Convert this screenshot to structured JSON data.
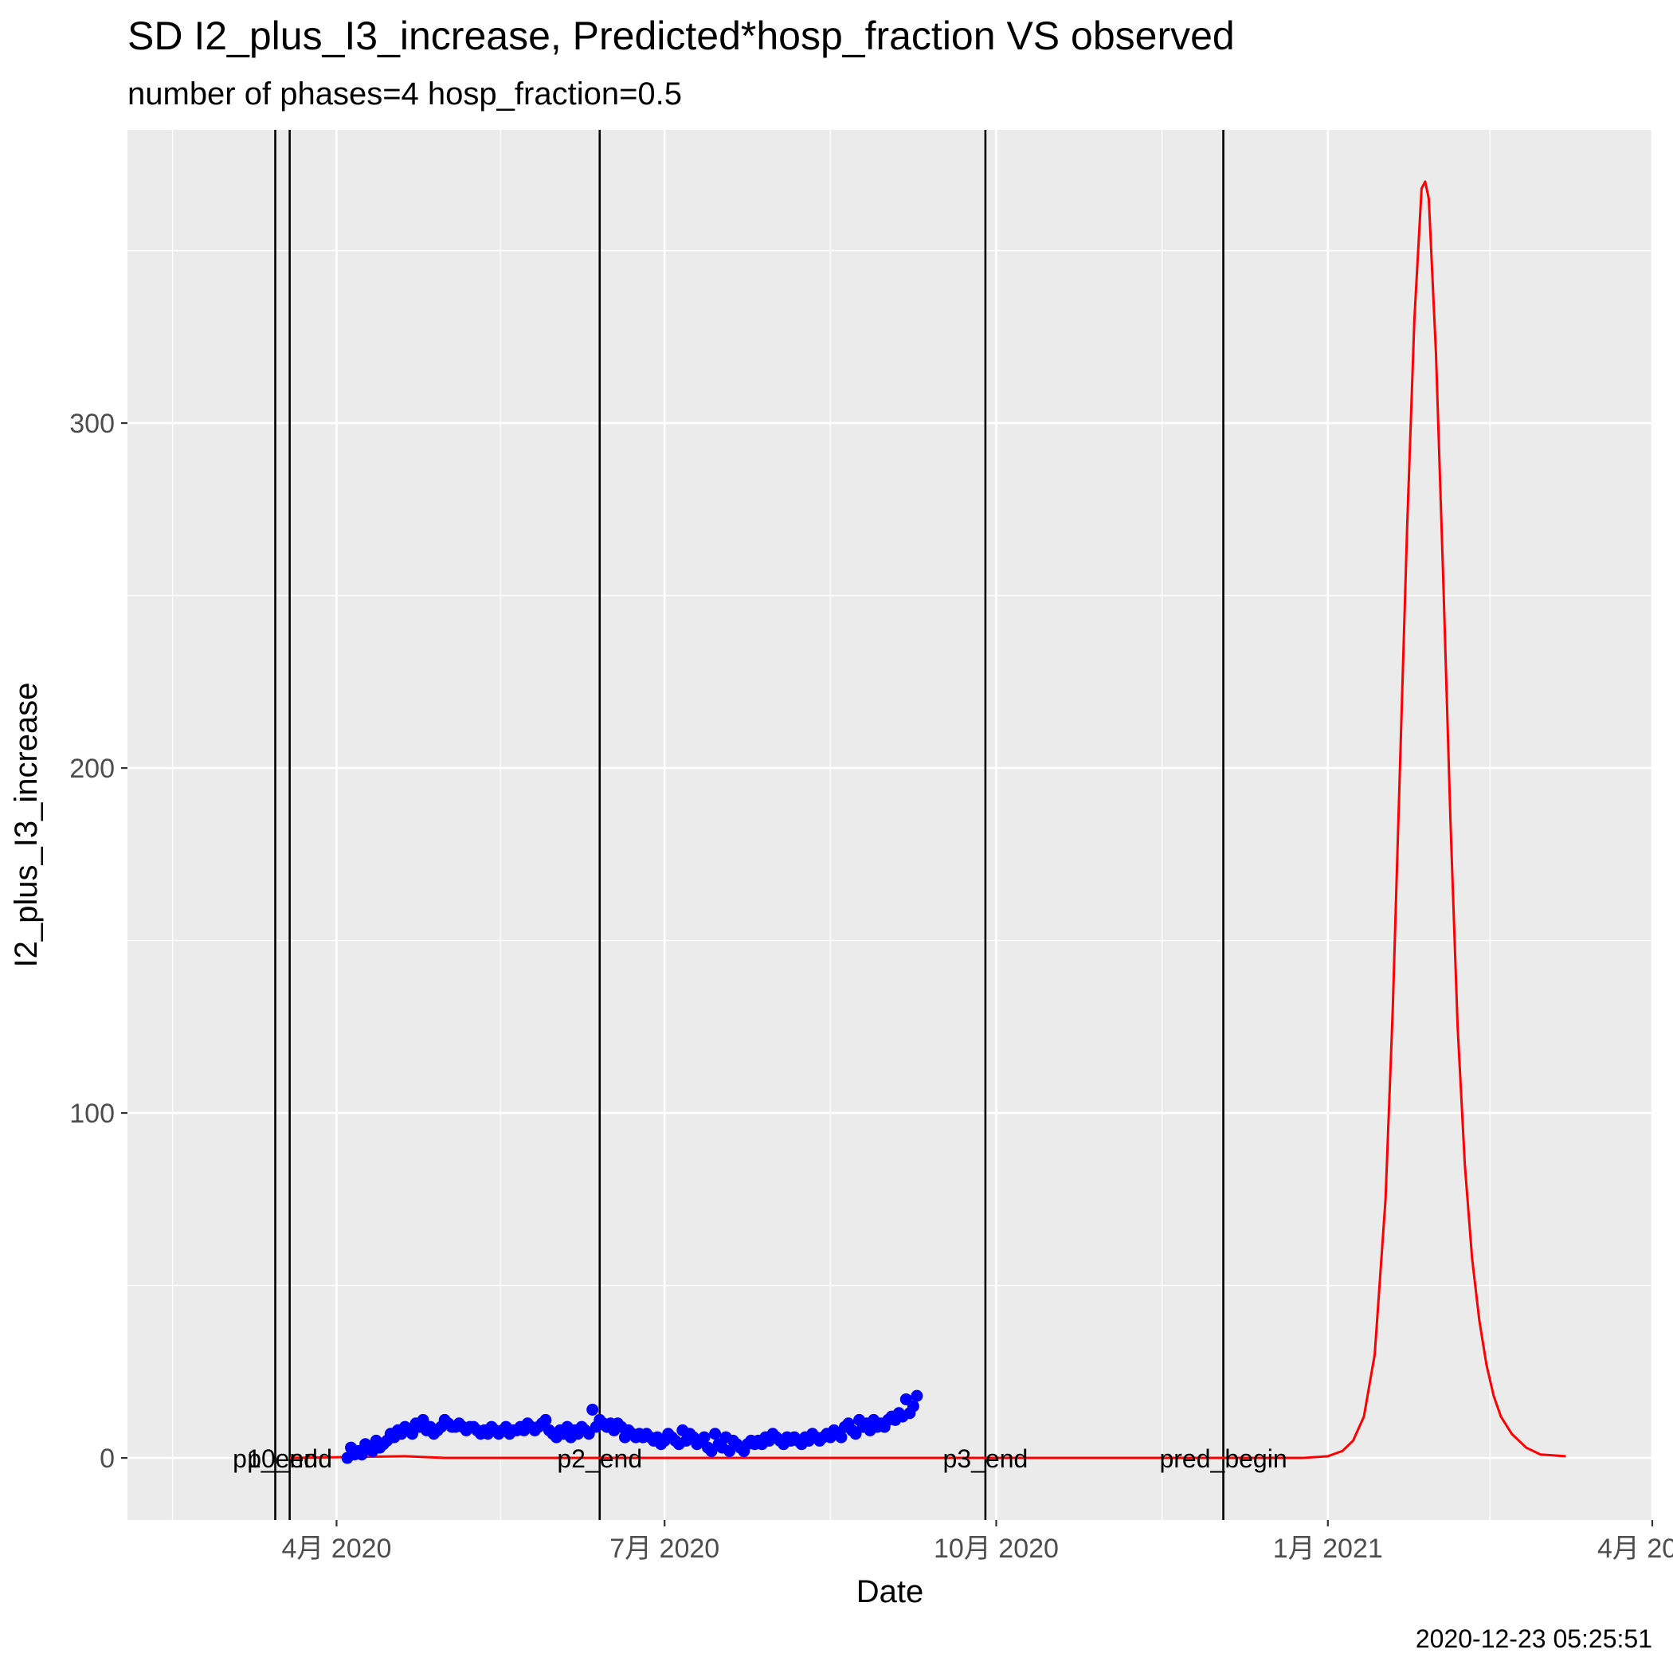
{
  "chart_data": {
    "type": "line",
    "title": "SD I2_plus_I3_increase, Predicted*hosp_fraction VS observed",
    "subtitle": "number of phases=4   hosp_fraction=0.5",
    "xlabel": "Date",
    "ylabel": "I2_plus_I3_increase",
    "caption": "2020-12-23 05:25:51",
    "xlim": [
      "2020-02-03",
      "2021-04-01"
    ],
    "ylim": [
      -18,
      385
    ],
    "grid": true,
    "x_ticks": [
      {
        "date": "2020-04-01",
        "label": "4月 2020"
      },
      {
        "date": "2020-07-01",
        "label": "7月 2020"
      },
      {
        "date": "2020-10-01",
        "label": "10月 2020"
      },
      {
        "date": "2021-01-01",
        "label": "1月 2021"
      },
      {
        "date": "2021-04-01",
        "label": "4月 2021"
      }
    ],
    "y_ticks": [
      0,
      100,
      200,
      300
    ],
    "y_minor_ticks": [
      50,
      150,
      250,
      350
    ],
    "phase_markers": [
      {
        "date": "2020-03-15",
        "label": "p1_end"
      },
      {
        "date": "2020-03-19",
        "label": "p0_end"
      },
      {
        "date": "2020-06-13",
        "label": "p2_end"
      },
      {
        "date": "2020-09-28",
        "label": "p3_end"
      },
      {
        "date": "2020-12-03",
        "label": "pred_begin"
      }
    ],
    "series": [
      {
        "name": "observed",
        "kind": "scatter",
        "color": "#0000ff",
        "points": [
          [
            "2020-04-04",
            0
          ],
          [
            "2020-04-05",
            3
          ],
          [
            "2020-04-06",
            1
          ],
          [
            "2020-04-07",
            2
          ],
          [
            "2020-04-08",
            1
          ],
          [
            "2020-04-09",
            4
          ],
          [
            "2020-04-10",
            3
          ],
          [
            "2020-04-11",
            2
          ],
          [
            "2020-04-12",
            5
          ],
          [
            "2020-04-13",
            3
          ],
          [
            "2020-04-14",
            4
          ],
          [
            "2020-04-15",
            5
          ],
          [
            "2020-04-16",
            7
          ],
          [
            "2020-04-17",
            6
          ],
          [
            "2020-04-18",
            8
          ],
          [
            "2020-04-19",
            7
          ],
          [
            "2020-04-20",
            9
          ],
          [
            "2020-04-21",
            8
          ],
          [
            "2020-04-22",
            7
          ],
          [
            "2020-04-23",
            10
          ],
          [
            "2020-04-24",
            9
          ],
          [
            "2020-04-25",
            11
          ],
          [
            "2020-04-26",
            8
          ],
          [
            "2020-04-27",
            9
          ],
          [
            "2020-04-28",
            7
          ],
          [
            "2020-04-29",
            8
          ],
          [
            "2020-04-30",
            9
          ],
          [
            "2020-05-01",
            11
          ],
          [
            "2020-05-02",
            10
          ],
          [
            "2020-05-03",
            9
          ],
          [
            "2020-05-04",
            9
          ],
          [
            "2020-05-05",
            10
          ],
          [
            "2020-05-06",
            9
          ],
          [
            "2020-05-07",
            8
          ],
          [
            "2020-05-08",
            9
          ],
          [
            "2020-05-09",
            9
          ],
          [
            "2020-05-10",
            8
          ],
          [
            "2020-05-11",
            7
          ],
          [
            "2020-05-12",
            8
          ],
          [
            "2020-05-13",
            7
          ],
          [
            "2020-05-14",
            9
          ],
          [
            "2020-05-15",
            8
          ],
          [
            "2020-05-16",
            7
          ],
          [
            "2020-05-17",
            8
          ],
          [
            "2020-05-18",
            9
          ],
          [
            "2020-05-19",
            7
          ],
          [
            "2020-05-20",
            8
          ],
          [
            "2020-05-21",
            8
          ],
          [
            "2020-05-22",
            9
          ],
          [
            "2020-05-23",
            8
          ],
          [
            "2020-05-24",
            10
          ],
          [
            "2020-05-25",
            9
          ],
          [
            "2020-05-26",
            8
          ],
          [
            "2020-05-27",
            9
          ],
          [
            "2020-05-28",
            10
          ],
          [
            "2020-05-29",
            11
          ],
          [
            "2020-05-30",
            8
          ],
          [
            "2020-05-31",
            7
          ],
          [
            "2020-06-01",
            6
          ],
          [
            "2020-06-02",
            8
          ],
          [
            "2020-06-03",
            7
          ],
          [
            "2020-06-04",
            9
          ],
          [
            "2020-06-05",
            6
          ],
          [
            "2020-06-06",
            8
          ],
          [
            "2020-06-07",
            7
          ],
          [
            "2020-06-08",
            9
          ],
          [
            "2020-06-09",
            8
          ],
          [
            "2020-06-10",
            7
          ],
          [
            "2020-06-11",
            14
          ],
          [
            "2020-06-12",
            9
          ],
          [
            "2020-06-13",
            11
          ],
          [
            "2020-06-14",
            10
          ],
          [
            "2020-06-15",
            9
          ],
          [
            "2020-06-16",
            10
          ],
          [
            "2020-06-17",
            8
          ],
          [
            "2020-06-18",
            10
          ],
          [
            "2020-06-19",
            9
          ],
          [
            "2020-06-20",
            6
          ],
          [
            "2020-06-21",
            8
          ],
          [
            "2020-06-22",
            7
          ],
          [
            "2020-06-23",
            6
          ],
          [
            "2020-06-24",
            7
          ],
          [
            "2020-06-25",
            6
          ],
          [
            "2020-06-26",
            7
          ],
          [
            "2020-06-27",
            6
          ],
          [
            "2020-06-28",
            5
          ],
          [
            "2020-06-29",
            6
          ],
          [
            "2020-06-30",
            4
          ],
          [
            "2020-07-01",
            5
          ],
          [
            "2020-07-02",
            7
          ],
          [
            "2020-07-03",
            6
          ],
          [
            "2020-07-04",
            5
          ],
          [
            "2020-07-05",
            4
          ],
          [
            "2020-07-06",
            8
          ],
          [
            "2020-07-07",
            5
          ],
          [
            "2020-07-08",
            7
          ],
          [
            "2020-07-09",
            6
          ],
          [
            "2020-07-10",
            4
          ],
          [
            "2020-07-11",
            5
          ],
          [
            "2020-07-12",
            6
          ],
          [
            "2020-07-13",
            3
          ],
          [
            "2020-07-14",
            2
          ],
          [
            "2020-07-15",
            7
          ],
          [
            "2020-07-16",
            4
          ],
          [
            "2020-07-17",
            3
          ],
          [
            "2020-07-18",
            6
          ],
          [
            "2020-07-19",
            2
          ],
          [
            "2020-07-20",
            5
          ],
          [
            "2020-07-21",
            4
          ],
          [
            "2020-07-22",
            3
          ],
          [
            "2020-07-23",
            2
          ],
          [
            "2020-07-24",
            4
          ],
          [
            "2020-07-25",
            5
          ],
          [
            "2020-07-26",
            4
          ],
          [
            "2020-07-27",
            5
          ],
          [
            "2020-07-28",
            4
          ],
          [
            "2020-07-29",
            6
          ],
          [
            "2020-07-30",
            5
          ],
          [
            "2020-07-31",
            7
          ],
          [
            "2020-08-01",
            6
          ],
          [
            "2020-08-02",
            5
          ],
          [
            "2020-08-03",
            4
          ],
          [
            "2020-08-04",
            6
          ],
          [
            "2020-08-05",
            5
          ],
          [
            "2020-08-06",
            6
          ],
          [
            "2020-08-07",
            5
          ],
          [
            "2020-08-08",
            4
          ],
          [
            "2020-08-09",
            6
          ],
          [
            "2020-08-10",
            5
          ],
          [
            "2020-08-11",
            7
          ],
          [
            "2020-08-12",
            6
          ],
          [
            "2020-08-13",
            5
          ],
          [
            "2020-08-14",
            6
          ],
          [
            "2020-08-15",
            7
          ],
          [
            "2020-08-16",
            6
          ],
          [
            "2020-08-17",
            8
          ],
          [
            "2020-08-18",
            7
          ],
          [
            "2020-08-19",
            6
          ],
          [
            "2020-08-20",
            9
          ],
          [
            "2020-08-21",
            10
          ],
          [
            "2020-08-22",
            8
          ],
          [
            "2020-08-23",
            7
          ],
          [
            "2020-08-24",
            11
          ],
          [
            "2020-08-25",
            9
          ],
          [
            "2020-08-26",
            10
          ],
          [
            "2020-08-27",
            8
          ],
          [
            "2020-08-28",
            11
          ],
          [
            "2020-08-29",
            9
          ],
          [
            "2020-08-30",
            10
          ],
          [
            "2020-08-31",
            9
          ],
          [
            "2020-09-01",
            11
          ],
          [
            "2020-09-02",
            12
          ],
          [
            "2020-09-03",
            11
          ],
          [
            "2020-09-04",
            13
          ],
          [
            "2020-09-05",
            12
          ],
          [
            "2020-09-06",
            17
          ],
          [
            "2020-09-07",
            13
          ],
          [
            "2020-09-08",
            15
          ],
          [
            "2020-09-09",
            18
          ]
        ]
      },
      {
        "name": "predicted*hosp_fraction",
        "kind": "line",
        "color": "#ff0000",
        "points": [
          [
            "2020-03-19",
            0
          ],
          [
            "2020-04-20",
            0.5
          ],
          [
            "2020-05-01",
            0
          ],
          [
            "2020-12-25",
            0
          ],
          [
            "2021-01-01",
            0.5
          ],
          [
            "2021-01-05",
            2
          ],
          [
            "2021-01-08",
            5
          ],
          [
            "2021-01-11",
            12
          ],
          [
            "2021-01-14",
            30
          ],
          [
            "2021-01-17",
            75
          ],
          [
            "2021-01-19",
            130
          ],
          [
            "2021-01-21",
            200
          ],
          [
            "2021-01-23",
            270
          ],
          [
            "2021-01-25",
            330
          ],
          [
            "2021-01-27",
            368
          ],
          [
            "2021-01-28",
            370
          ],
          [
            "2021-01-29",
            365
          ],
          [
            "2021-01-31",
            320
          ],
          [
            "2021-02-02",
            255
          ],
          [
            "2021-02-04",
            185
          ],
          [
            "2021-02-06",
            125
          ],
          [
            "2021-02-08",
            85
          ],
          [
            "2021-02-10",
            58
          ],
          [
            "2021-02-12",
            40
          ],
          [
            "2021-02-14",
            27
          ],
          [
            "2021-02-16",
            18
          ],
          [
            "2021-02-18",
            12
          ],
          [
            "2021-02-21",
            7
          ],
          [
            "2021-02-25",
            3
          ],
          [
            "2021-03-01",
            1
          ],
          [
            "2021-03-08",
            0.5
          ]
        ]
      }
    ]
  }
}
